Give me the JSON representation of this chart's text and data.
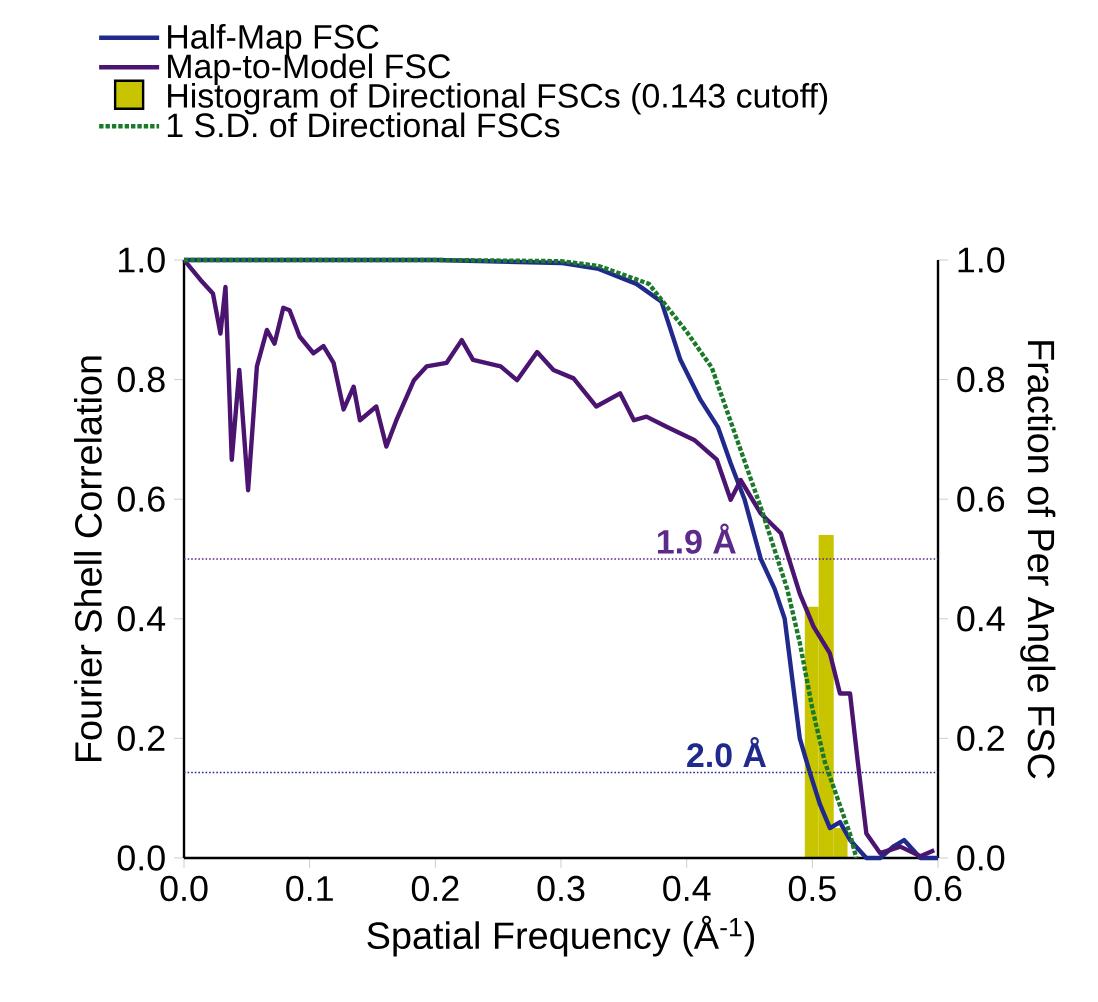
{
  "chart_data": {
    "type": "line",
    "xlabel": "Spatial Frequency (Å$^{-1}$)",
    "ylabel": "Fourier Shell Correlation",
    "y2label": "Fraction of Per Angle FSC",
    "xlim": [
      0,
      0.6
    ],
    "ylim": [
      0,
      1
    ],
    "y2lim": [
      0,
      1
    ],
    "xticks": [
      {
        "value": 0,
        "label": "0.0"
      },
      0.1,
      0.2,
      0.3,
      0.4,
      0.5,
      0.6
    ],
    "yticks": [
      {
        "value": 0,
        "label": "0.0"
      },
      0.2,
      0.4,
      0.6,
      0.8,
      {
        "value": 1,
        "label": "1.0"
      }
    ],
    "y2ticks": [
      {
        "value": 0,
        "label": "0.0"
      },
      0.2,
      0.4,
      0.6,
      0.8,
      {
        "value": 1,
        "label": "1.0"
      }
    ],
    "legend": "top left",
    "marker": "none",
    "series": [
      {
        "name": "Half-Map FSC",
        "color": "#1f2a8c",
        "line_style": "solid",
        "x": [
          0,
          0.1,
          0.2,
          0.3,
          0.33,
          0.36,
          0.38,
          0.395,
          0.411,
          0.425,
          0.435,
          0.446,
          0.459,
          0.47,
          0.478,
          0.49,
          0.498,
          0.506,
          0.514,
          0.522,
          0.53,
          0.543,
          0.554,
          0.565,
          0.573,
          0.586,
          0.6
        ],
        "values": [
          1,
          1,
          1,
          0.995,
          0.985,
          0.96,
          0.93,
          0.833,
          0.766,
          0.72,
          0.66,
          0.6,
          0.5,
          0.45,
          0.4,
          0.2,
          0.143,
          0.09,
          0.05,
          0.06,
          0.03,
          0.0,
          0.0,
          0.02,
          0.03,
          0.0,
          0.0
        ]
      },
      {
        "name": "Map-to-Model FSC",
        "color": "#4a1470",
        "line_style": "solid",
        "x": [
          0,
          0.013,
          0.023,
          0.029,
          0.033,
          0.038,
          0.044,
          0.051,
          0.058,
          0.066,
          0.072,
          0.079,
          0.084,
          0.092,
          0.103,
          0.111,
          0.119,
          0.127,
          0.135,
          0.14,
          0.153,
          0.161,
          0.169,
          0.183,
          0.193,
          0.209,
          0.221,
          0.23,
          0.252,
          0.265,
          0.281,
          0.294,
          0.31,
          0.328,
          0.347,
          0.358,
          0.368,
          0.384,
          0.406,
          0.424,
          0.435,
          0.443,
          0.459,
          0.475,
          0.49,
          0.501,
          0.514,
          0.522,
          0.53,
          0.536,
          0.543,
          0.554,
          0.57,
          0.586,
          0.597
        ],
        "values": [
          1.0,
          0.967,
          0.944,
          0.877,
          0.955,
          0.666,
          0.816,
          0.615,
          0.822,
          0.883,
          0.86,
          0.92,
          0.916,
          0.872,
          0.844,
          0.856,
          0.828,
          0.75,
          0.788,
          0.732,
          0.755,
          0.688,
          0.732,
          0.799,
          0.822,
          0.828,
          0.866,
          0.833,
          0.822,
          0.799,
          0.846,
          0.816,
          0.802,
          0.755,
          0.777,
          0.732,
          0.738,
          0.721,
          0.699,
          0.666,
          0.599,
          0.632,
          0.576,
          0.543,
          0.442,
          0.387,
          0.342,
          0.275,
          0.275,
          0.164,
          0.041,
          0.008,
          0.019,
          0.003,
          0.013
        ]
      },
      {
        "type": "histogram",
        "name": "Histogram of Directional FSCs (0.143 cutoff)",
        "color": "#c8c400",
        "axis": "y2",
        "bins": [
          0.494,
          0.505,
          0.517,
          0.528
        ],
        "values": [
          0.42,
          0.54,
          0.05
        ]
      },
      {
        "name": "1 S.D. of Directional FSCs",
        "color": "#1a7a2a",
        "line_style": "dotted",
        "x": [
          0,
          0.2,
          0.3,
          0.33,
          0.37,
          0.4,
          0.42,
          0.44,
          0.46,
          0.48,
          0.49,
          0.5,
          0.51,
          0.52,
          0.53,
          0.535
        ],
        "values": [
          1,
          1,
          0.998,
          0.99,
          0.96,
          0.88,
          0.82,
          0.7,
          0.58,
          0.45,
          0.36,
          0.25,
          0.16,
          0.1,
          0.04,
          0.0
        ]
      }
    ],
    "ref_lines": [
      {
        "axis": "y",
        "value": 0.5,
        "label": "1.9 Å",
        "color": "#5b2a8a",
        "line_style": "dotted"
      },
      {
        "axis": "y",
        "value": 0.143,
        "label": "2.0 Å",
        "color": "#1f2a8c",
        "line_style": "dotted"
      }
    ]
  }
}
